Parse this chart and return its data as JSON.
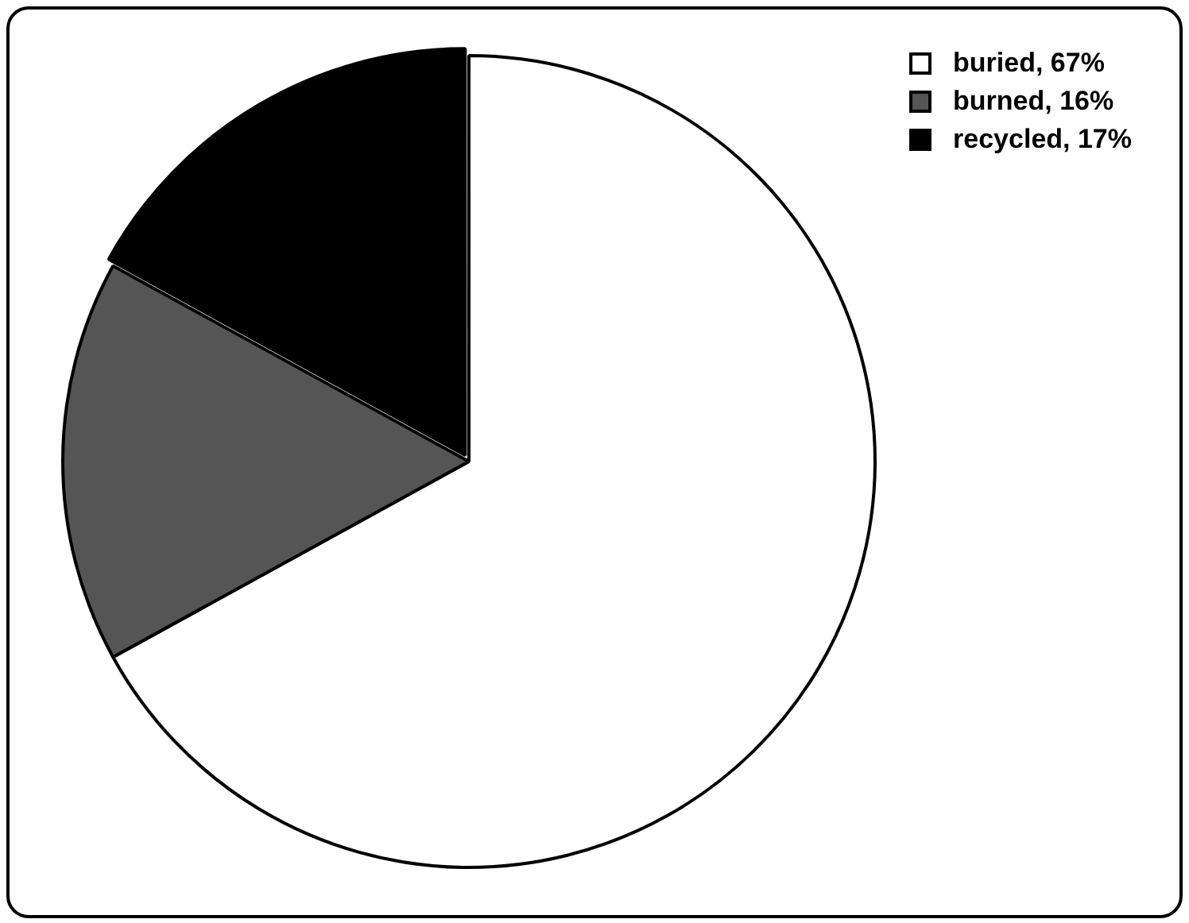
{
  "chart_data": {
    "type": "pie",
    "categories": [
      "buried, 67%",
      "burned, 16%",
      "recycled, 17%"
    ],
    "values": [
      67,
      16,
      17
    ],
    "colors": [
      "#ffffff",
      "#555555",
      "#000000"
    ],
    "legend": "top right"
  }
}
